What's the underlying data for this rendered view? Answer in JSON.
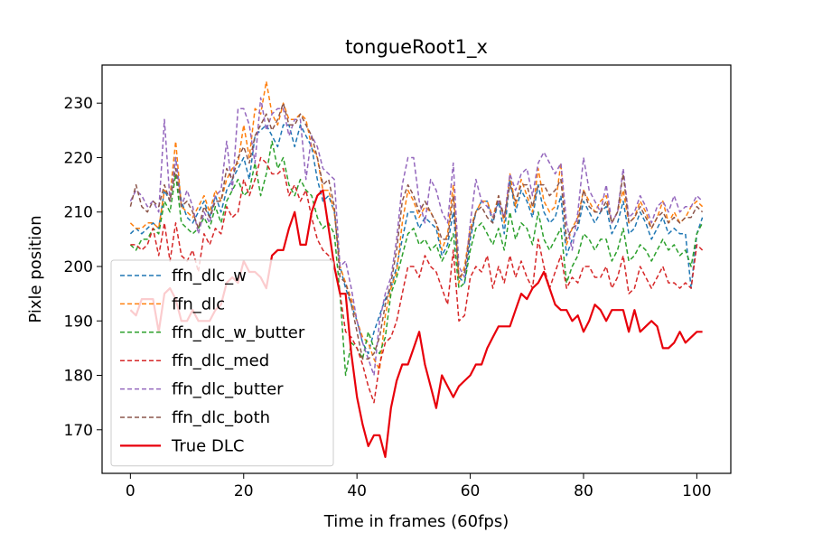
{
  "chart_data": {
    "type": "line",
    "title": "tongueRoot1_x",
    "xlabel": "Time in frames (60fps)",
    "ylabel": "Pixle position",
    "xlim": [
      -5,
      106
    ],
    "ylim": [
      162,
      237
    ],
    "xticks": [
      0,
      20,
      40,
      60,
      80,
      100
    ],
    "yticks": [
      170,
      180,
      190,
      200,
      210,
      220,
      230
    ],
    "grid": false,
    "legend_position": "lower-left",
    "x": [
      0,
      1,
      2,
      3,
      4,
      5,
      6,
      7,
      8,
      9,
      10,
      11,
      12,
      13,
      14,
      15,
      16,
      17,
      18,
      19,
      20,
      21,
      22,
      23,
      24,
      25,
      26,
      27,
      28,
      29,
      30,
      31,
      32,
      33,
      34,
      35,
      36,
      37,
      38,
      39,
      40,
      41,
      42,
      43,
      44,
      45,
      46,
      47,
      48,
      49,
      50,
      51,
      52,
      53,
      54,
      55,
      56,
      57,
      58,
      59,
      60,
      61,
      62,
      63,
      64,
      65,
      66,
      67,
      68,
      69,
      70,
      71,
      72,
      73,
      74,
      75,
      76,
      77,
      78,
      79,
      80,
      81,
      82,
      83,
      84,
      85,
      86,
      87,
      88,
      89,
      90,
      91,
      92,
      93,
      94,
      95,
      96,
      97,
      98,
      99,
      100,
      101
    ],
    "series": [
      {
        "name": "ffn_dlc_w",
        "color": "#1f77b4",
        "style": "dashed",
        "values": [
          206,
          207,
          206,
          207,
          208,
          207,
          214,
          212,
          220,
          212,
          209,
          208,
          210,
          212,
          209,
          213,
          210,
          214,
          216,
          218,
          220,
          216,
          224,
          225,
          226,
          224,
          222,
          226,
          226,
          222,
          226,
          224,
          222,
          216,
          212,
          213,
          210,
          200,
          196,
          193,
          190,
          186,
          184,
          188,
          191,
          194,
          196,
          200,
          205,
          210,
          210,
          207,
          209,
          208,
          207,
          202,
          204,
          210,
          198,
          197,
          205,
          210,
          212,
          212,
          208,
          212,
          206,
          216,
          210,
          214,
          212,
          209,
          215,
          210,
          208,
          209,
          213,
          202,
          205,
          207,
          212,
          210,
          208,
          210,
          211,
          206,
          208,
          212,
          206,
          207,
          210,
          208,
          205,
          207,
          209,
          206,
          207,
          206,
          206,
          196,
          206,
          209
        ]
      },
      {
        "name": "ffn_dlc",
        "color": "#ff7f0e",
        "style": "dashed",
        "values": [
          208,
          207,
          207,
          208,
          208,
          207,
          214,
          213,
          223,
          211,
          210,
          209,
          211,
          213,
          210,
          214,
          212,
          216,
          218,
          219,
          226,
          220,
          229,
          228,
          234,
          228,
          226,
          230,
          227,
          227,
          228,
          227,
          222,
          220,
          214,
          214,
          210,
          200,
          197,
          194,
          190,
          187,
          186,
          183,
          181,
          191,
          196,
          199,
          208,
          214,
          212,
          209,
          211,
          210,
          208,
          203,
          206,
          215,
          197,
          200,
          207,
          210,
          212,
          212,
          209,
          213,
          208,
          217,
          211,
          216,
          213,
          210,
          218,
          212,
          210,
          211,
          219,
          204,
          207,
          209,
          214,
          212,
          210,
          212,
          213,
          208,
          210,
          214,
          208,
          209,
          212,
          210,
          207,
          209,
          212,
          208,
          210,
          208,
          209,
          211,
          212,
          211
        ]
      },
      {
        "name": "ffn_dlc_w_butter",
        "color": "#2ca02c",
        "style": "dashed",
        "values": [
          204,
          203,
          205,
          205,
          207,
          206,
          212,
          210,
          217,
          208,
          207,
          206,
          207,
          209,
          207,
          211,
          208,
          212,
          214,
          216,
          213,
          214,
          219,
          213,
          217,
          223,
          218,
          220,
          215,
          213,
          216,
          214,
          213,
          209,
          207,
          208,
          206,
          195,
          180,
          186,
          185,
          183,
          188,
          185,
          184,
          187,
          195,
          198,
          202,
          206,
          207,
          204,
          205,
          203,
          204,
          201,
          203,
          206,
          196,
          197,
          203,
          207,
          208,
          206,
          204,
          207,
          203,
          210,
          205,
          208,
          207,
          204,
          210,
          205,
          203,
          205,
          207,
          197,
          200,
          202,
          206,
          205,
          203,
          205,
          205,
          201,
          203,
          207,
          201,
          202,
          204,
          203,
          201,
          203,
          205,
          203,
          204,
          202,
          203,
          200,
          206,
          208
        ]
      },
      {
        "name": "ffn_dlc_med",
        "color": "#d62728",
        "style": "dashed",
        "values": [
          204,
          204,
          203,
          204,
          207,
          202,
          208,
          201,
          208,
          202,
          201,
          203,
          199,
          206,
          204,
          207,
          206,
          211,
          209,
          210,
          216,
          213,
          216,
          220,
          219,
          217,
          217,
          218,
          213,
          215,
          212,
          214,
          209,
          205,
          203,
          202,
          200,
          195,
          188,
          187,
          185,
          182,
          178,
          175,
          182,
          186,
          187,
          190,
          195,
          200,
          200,
          198,
          202,
          200,
          199,
          196,
          193,
          203,
          190,
          191,
          198,
          200,
          199,
          202,
          196,
          200,
          197,
          202,
          198,
          201,
          198,
          196,
          205,
          200,
          196,
          199,
          202,
          196,
          198,
          197,
          200,
          200,
          198,
          198,
          200,
          196,
          198,
          202,
          195,
          196,
          200,
          198,
          196,
          198,
          200,
          197,
          197,
          196,
          197,
          196,
          204,
          203
        ]
      },
      {
        "name": "ffn_dlc_butter",
        "color": "#9467bd",
        "style": "dashed",
        "values": [
          212,
          214,
          213,
          211,
          212,
          210,
          227,
          212,
          220,
          211,
          214,
          211,
          206,
          210,
          208,
          213,
          214,
          223,
          214,
          229,
          229,
          226,
          219,
          231,
          225,
          228,
          229,
          229,
          224,
          227,
          227,
          216,
          224,
          222,
          218,
          217,
          216,
          200,
          201,
          196,
          190,
          186,
          183,
          180,
          190,
          195,
          198,
          205,
          215,
          220,
          220,
          212,
          208,
          216,
          214,
          210,
          208,
          219,
          200,
          198,
          208,
          216,
          212,
          211,
          209,
          212,
          209,
          217,
          214,
          217,
          218,
          213,
          219,
          221,
          219,
          217,
          219,
          208,
          203,
          210,
          220,
          214,
          212,
          210,
          215,
          208,
          210,
          218,
          209,
          210,
          213,
          211,
          208,
          211,
          212,
          210,
          213,
          210,
          211,
          211,
          213,
          212
        ]
      },
      {
        "name": "ffn_dlc_both",
        "color": "#8c564b",
        "style": "dashed",
        "values": [
          211,
          215,
          211,
          210,
          212,
          211,
          215,
          212,
          218,
          211,
          212,
          210,
          207,
          211,
          209,
          212,
          212,
          218,
          216,
          220,
          222,
          219,
          224,
          226,
          228,
          225,
          227,
          230,
          226,
          226,
          228,
          226,
          224,
          220,
          215,
          216,
          211,
          198,
          197,
          193,
          188,
          183,
          183,
          184,
          187,
          193,
          197,
          203,
          212,
          215,
          213,
          210,
          212,
          210,
          208,
          205,
          205,
          213,
          198,
          199,
          206,
          210,
          211,
          209,
          208,
          213,
          209,
          215,
          212,
          215,
          215,
          211,
          215,
          215,
          213,
          214,
          216,
          205,
          207,
          208,
          214,
          211,
          210,
          210,
          212,
          208,
          210,
          217,
          208,
          209,
          211,
          209,
          207,
          209,
          210,
          208,
          209,
          208,
          209,
          209,
          211,
          210
        ]
      },
      {
        "name": "True DLC",
        "color": "#e8000b",
        "style": "solid",
        "values": [
          192,
          191,
          194,
          194,
          194,
          188,
          195,
          196,
          194,
          190,
          190,
          192,
          190,
          190,
          190,
          192,
          193,
          197,
          198,
          197,
          201,
          199,
          199,
          198,
          196,
          202,
          203,
          203,
          207,
          210,
          204,
          204,
          210,
          213,
          214,
          207,
          200,
          195,
          195,
          184,
          176,
          171,
          167,
          169,
          169,
          165,
          174,
          179,
          182,
          182,
          185,
          188,
          182,
          178,
          174,
          180,
          178,
          176,
          178,
          179,
          180,
          182,
          182,
          185,
          187,
          189,
          189,
          189,
          192,
          195,
          194,
          196,
          197,
          199,
          196,
          193,
          192,
          192,
          190,
          191,
          188,
          190,
          193,
          192,
          190,
          192,
          192,
          192,
          188,
          192,
          188,
          189,
          190,
          189,
          185,
          185,
          186,
          188,
          186,
          187,
          188,
          188
        ]
      }
    ]
  }
}
